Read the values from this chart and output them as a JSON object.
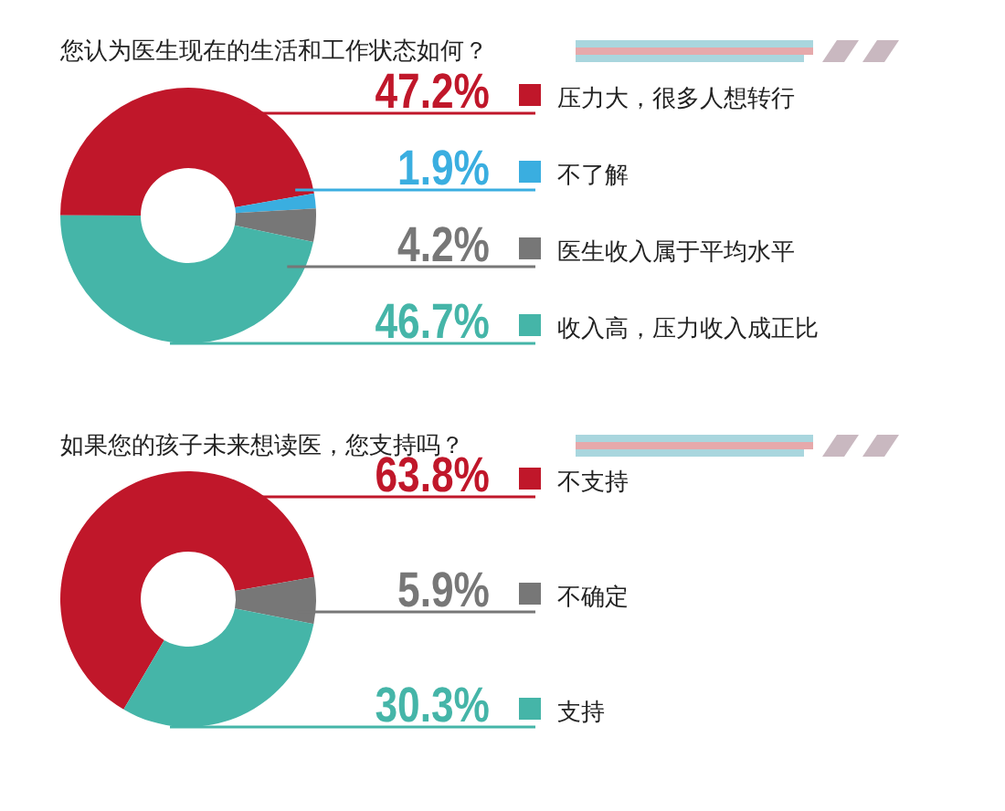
{
  "chart_data": [
    {
      "type": "donut",
      "title": "您认为医生现在的生活和工作状态如何？",
      "categories": [
        "压力大，很多人想转行",
        "不了解",
        "医生收入属于平均水平",
        "收入高，压力收入成正比"
      ],
      "values": [
        47.2,
        1.9,
        4.2,
        46.7
      ],
      "value_labels": [
        "47.2%",
        "1.9%",
        "4.2%",
        "46.7%"
      ],
      "colors": [
        "#c0172a",
        "#3aaee0",
        "#777777",
        "#45b5a8"
      ],
      "legend": "right"
    },
    {
      "type": "donut",
      "title": "如果您的孩子未来想读医，您支持吗？",
      "categories": [
        "不支持",
        "不确定",
        "支持"
      ],
      "values": [
        63.8,
        5.9,
        30.3
      ],
      "value_labels": [
        "63.8%",
        "5.9%",
        "30.3%"
      ],
      "colors": [
        "#c0172a",
        "#777777",
        "#45b5a8"
      ],
      "legend": "right"
    }
  ]
}
